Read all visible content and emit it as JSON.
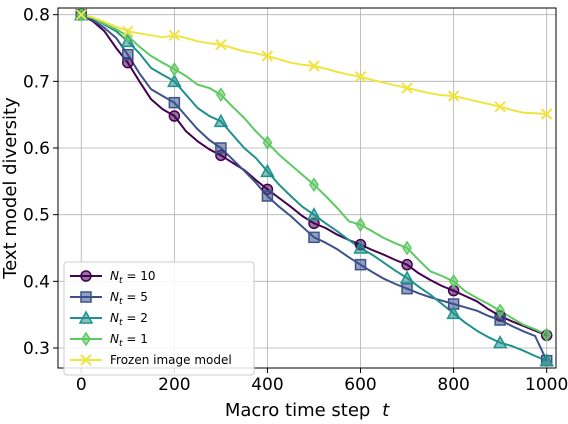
{
  "chart_data": {
    "type": "line",
    "xlabel": "Macro time step",
    "xlabel_var": "t",
    "ylabel": "Text model diversity",
    "xlim": [
      -50,
      1020
    ],
    "ylim": [
      0.27,
      0.81
    ],
    "xticks": [
      0,
      200,
      400,
      600,
      800,
      1000
    ],
    "yticks": [
      0.3,
      0.4,
      0.5,
      0.6,
      0.7,
      0.8
    ],
    "grid": true,
    "legend_position": "lower-left",
    "series": [
      {
        "name": "N_t = 10",
        "legend_sub": "t",
        "legend_value": " = 10",
        "color": "#440154",
        "marker": "circle",
        "x": [
          0,
          25,
          50,
          75,
          100,
          125,
          150,
          175,
          200,
          225,
          250,
          275,
          300,
          325,
          350,
          375,
          400,
          425,
          450,
          475,
          500,
          525,
          550,
          575,
          600,
          625,
          650,
          675,
          700,
          725,
          750,
          775,
          800,
          825,
          850,
          875,
          900,
          925,
          950,
          975,
          1000
        ],
        "y": [
          0.8,
          0.79,
          0.775,
          0.75,
          0.728,
          0.7,
          0.673,
          0.658,
          0.648,
          0.625,
          0.61,
          0.598,
          0.589,
          0.578,
          0.567,
          0.552,
          0.538,
          0.525,
          0.512,
          0.498,
          0.487,
          0.48,
          0.47,
          0.462,
          0.455,
          0.447,
          0.44,
          0.432,
          0.425,
          0.412,
          0.402,
          0.393,
          0.386,
          0.378,
          0.37,
          0.358,
          0.348,
          0.34,
          0.333,
          0.326,
          0.319
        ]
      },
      {
        "name": "N_t = 5",
        "legend_sub": "t",
        "legend_value": " = 5",
        "color": "#3b528b",
        "marker": "square",
        "x": [
          0,
          25,
          50,
          75,
          100,
          125,
          150,
          175,
          200,
          225,
          250,
          275,
          300,
          325,
          350,
          375,
          400,
          425,
          450,
          475,
          500,
          525,
          550,
          575,
          600,
          625,
          650,
          675,
          700,
          725,
          750,
          775,
          800,
          825,
          850,
          875,
          900,
          925,
          950,
          975,
          1000
        ],
        "y": [
          0.8,
          0.792,
          0.78,
          0.765,
          0.74,
          0.712,
          0.688,
          0.678,
          0.668,
          0.648,
          0.628,
          0.612,
          0.6,
          0.583,
          0.566,
          0.548,
          0.528,
          0.512,
          0.498,
          0.482,
          0.466,
          0.458,
          0.448,
          0.436,
          0.425,
          0.414,
          0.404,
          0.396,
          0.389,
          0.382,
          0.376,
          0.371,
          0.366,
          0.361,
          0.356,
          0.348,
          0.342,
          0.333,
          0.325,
          0.318,
          0.281
        ]
      },
      {
        "name": "N_t = 2",
        "legend_sub": "t",
        "legend_value": " = 2",
        "color": "#21918c",
        "marker": "triangle",
        "x": [
          0,
          25,
          50,
          75,
          100,
          125,
          150,
          175,
          200,
          225,
          250,
          275,
          300,
          325,
          350,
          375,
          400,
          425,
          450,
          475,
          500,
          525,
          550,
          575,
          600,
          625,
          650,
          675,
          700,
          725,
          750,
          775,
          800,
          825,
          850,
          875,
          900,
          925,
          950,
          975,
          1000
        ],
        "y": [
          0.8,
          0.795,
          0.785,
          0.775,
          0.76,
          0.742,
          0.72,
          0.71,
          0.7,
          0.68,
          0.66,
          0.648,
          0.64,
          0.62,
          0.6,
          0.585,
          0.565,
          0.545,
          0.528,
          0.512,
          0.5,
          0.487,
          0.475,
          0.462,
          0.45,
          0.44,
          0.428,
          0.416,
          0.405,
          0.392,
          0.38,
          0.366,
          0.352,
          0.338,
          0.326,
          0.316,
          0.308,
          0.303,
          0.296,
          0.288,
          0.281
        ]
      },
      {
        "name": "N_t = 1",
        "legend_sub": "t",
        "legend_value": " = 1",
        "color": "#5ec962",
        "marker": "diamond",
        "x": [
          0,
          25,
          50,
          75,
          100,
          125,
          150,
          175,
          200,
          225,
          250,
          275,
          300,
          325,
          350,
          375,
          400,
          425,
          450,
          475,
          500,
          525,
          550,
          575,
          600,
          625,
          650,
          675,
          700,
          725,
          750,
          775,
          800,
          825,
          850,
          875,
          900,
          925,
          950,
          975,
          1000
        ],
        "y": [
          0.8,
          0.795,
          0.786,
          0.778,
          0.768,
          0.752,
          0.738,
          0.728,
          0.718,
          0.708,
          0.695,
          0.69,
          0.68,
          0.662,
          0.645,
          0.625,
          0.608,
          0.59,
          0.575,
          0.56,
          0.545,
          0.528,
          0.51,
          0.49,
          0.485,
          0.475,
          0.465,
          0.457,
          0.45,
          0.432,
          0.415,
          0.408,
          0.4,
          0.385,
          0.375,
          0.366,
          0.356,
          0.345,
          0.335,
          0.328,
          0.32
        ]
      },
      {
        "name": "Frozen image model",
        "legend_sub": "",
        "legend_value": "Frozen image model",
        "color": "#f0e442",
        "marker": "x",
        "x": [
          0,
          25,
          50,
          75,
          100,
          125,
          150,
          175,
          200,
          225,
          250,
          275,
          300,
          325,
          350,
          375,
          400,
          425,
          450,
          475,
          500,
          525,
          550,
          575,
          600,
          625,
          650,
          675,
          700,
          725,
          750,
          775,
          800,
          825,
          850,
          875,
          900,
          925,
          950,
          975,
          1000
        ],
        "y": [
          0.8,
          0.796,
          0.789,
          0.782,
          0.775,
          0.772,
          0.769,
          0.766,
          0.769,
          0.765,
          0.76,
          0.757,
          0.755,
          0.75,
          0.745,
          0.742,
          0.738,
          0.733,
          0.728,
          0.725,
          0.723,
          0.719,
          0.714,
          0.71,
          0.707,
          0.702,
          0.698,
          0.694,
          0.69,
          0.686,
          0.682,
          0.679,
          0.678,
          0.674,
          0.67,
          0.666,
          0.662,
          0.657,
          0.653,
          0.652,
          0.651
        ]
      }
    ]
  }
}
